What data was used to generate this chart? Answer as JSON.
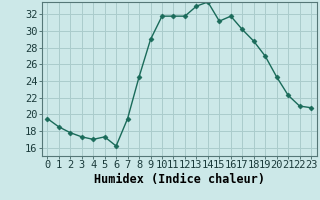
{
  "x": [
    0,
    1,
    2,
    3,
    4,
    5,
    6,
    7,
    8,
    9,
    10,
    11,
    12,
    13,
    14,
    15,
    16,
    17,
    18,
    19,
    20,
    21,
    22,
    23
  ],
  "y": [
    19.5,
    18.5,
    17.8,
    17.3,
    17.0,
    17.3,
    16.2,
    19.5,
    24.5,
    29.0,
    31.8,
    31.8,
    31.8,
    33.0,
    33.5,
    31.2,
    31.8,
    30.2,
    28.8,
    27.0,
    24.5,
    22.3,
    21.0,
    20.8
  ],
  "line_color": "#1a6b5a",
  "marker": "D",
  "marker_size": 2.5,
  "bg_color": "#cce8e8",
  "grid_color": "#aacccc",
  "xlabel": "Humidex (Indice chaleur)",
  "xlim": [
    -0.5,
    23.5
  ],
  "ylim": [
    15.0,
    33.5
  ],
  "yticks": [
    16,
    18,
    20,
    22,
    24,
    26,
    28,
    30,
    32
  ],
  "xticks": [
    0,
    1,
    2,
    3,
    4,
    5,
    6,
    7,
    8,
    9,
    10,
    11,
    12,
    13,
    14,
    15,
    16,
    17,
    18,
    19,
    20,
    21,
    22,
    23
  ],
  "xlabel_fontsize": 8.5,
  "tick_fontsize": 7.5
}
